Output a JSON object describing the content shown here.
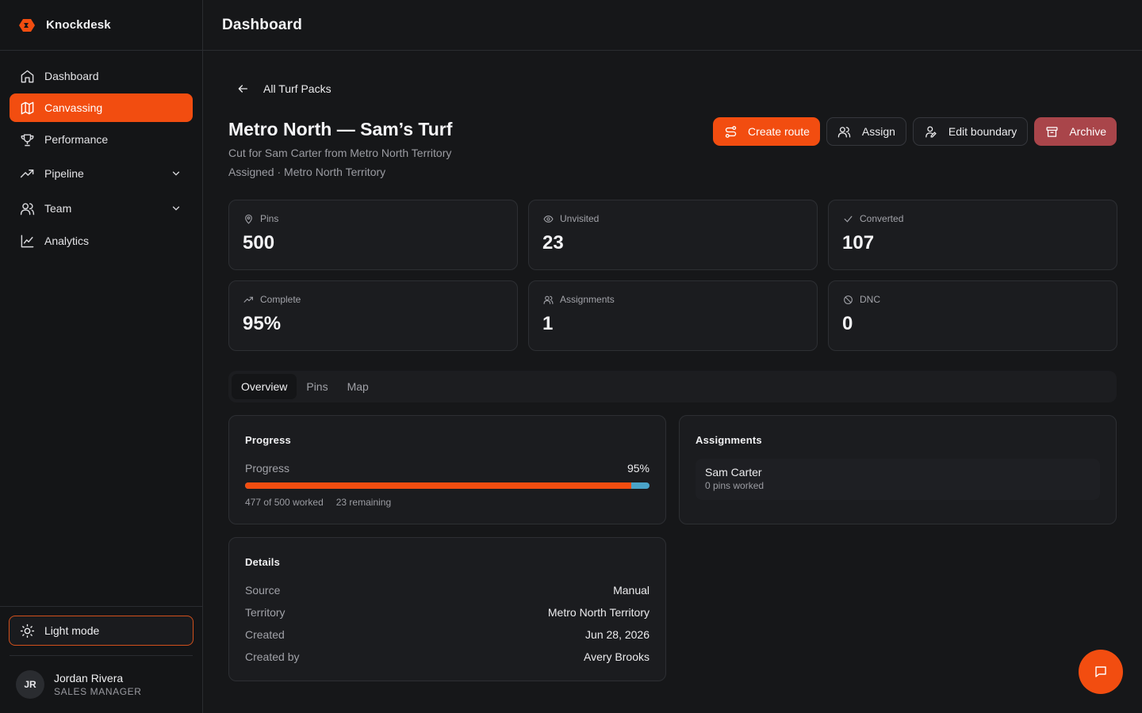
{
  "app": {
    "name": "Knockdesk"
  },
  "topbar": {
    "title": "Dashboard"
  },
  "sidebar": {
    "items": [
      {
        "label": "Dashboard",
        "icon": "home-icon"
      },
      {
        "label": "Canvassing",
        "icon": "map-icon",
        "active": true
      },
      {
        "label": "Performance",
        "icon": "trophy-icon"
      },
      {
        "label": "Pipeline",
        "icon": "trend-icon",
        "expandable": true
      },
      {
        "label": "Team",
        "icon": "users-icon",
        "expandable": true
      },
      {
        "label": "Analytics",
        "icon": "chart-icon"
      }
    ],
    "theme_toggle": "Light mode",
    "user": {
      "initials": "JR",
      "name": "Jordan Rivera",
      "role": "SALES MANAGER"
    }
  },
  "page": {
    "back_label": "All Turf Packs",
    "title": "Metro North — Sam’s Turf",
    "subtitle": "Cut for Sam Carter from Metro North Territory",
    "status_line": "Assigned · Metro North Territory"
  },
  "actions": {
    "create_route": "Create route",
    "assign": "Assign",
    "edit_boundary": "Edit boundary",
    "archive": "Archive"
  },
  "stats": [
    {
      "label": "Pins",
      "value": "500",
      "icon": "pin-icon"
    },
    {
      "label": "Unvisited",
      "value": "23",
      "icon": "eye-icon"
    },
    {
      "label": "Converted",
      "value": "107",
      "icon": "check-icon"
    },
    {
      "label": "Complete",
      "value": "95%",
      "icon": "trending-up-icon"
    },
    {
      "label": "Assignments",
      "value": "1",
      "icon": "users-icon"
    },
    {
      "label": "DNC",
      "value": "0",
      "icon": "ban-icon"
    }
  ],
  "tabs": [
    "Overview",
    "Pins",
    "Map"
  ],
  "progress": {
    "title": "Progress",
    "label": "Progress",
    "percent_text": "95%",
    "fraction": 0.954,
    "worked": "477 of 500 worked",
    "remaining": "23 remaining"
  },
  "assignments": {
    "title": "Assignments",
    "items": [
      {
        "name": "Sam Carter",
        "sub": "0 pins worked"
      }
    ]
  },
  "details": {
    "title": "Details",
    "rows": [
      {
        "k": "Source",
        "v": "Manual"
      },
      {
        "k": "Territory",
        "v": "Metro North Territory"
      },
      {
        "k": "Created",
        "v": "Jun 28, 2026"
      },
      {
        "k": "Created by",
        "v": "Avery Brooks"
      }
    ]
  },
  "colors": {
    "accent": "#f24d10",
    "danger": "#a9454a",
    "progress_rest": "#4aa3c8",
    "background": "#161719"
  }
}
